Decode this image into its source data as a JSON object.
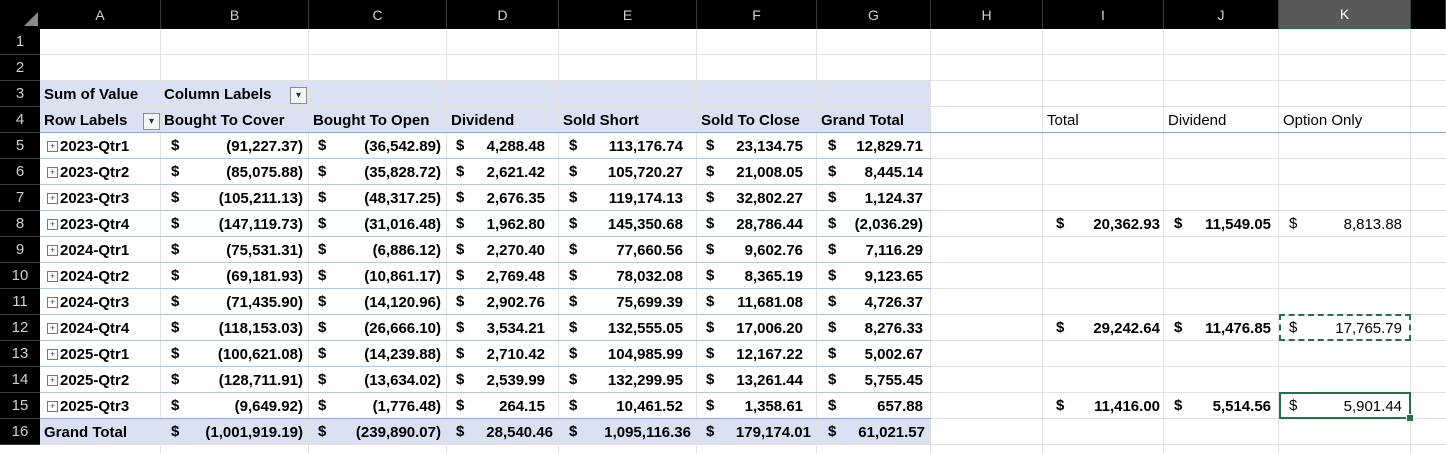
{
  "columns": [
    "A",
    "B",
    "C",
    "D",
    "E",
    "F",
    "G",
    "H",
    "I",
    "J",
    "K"
  ],
  "selected_column": "K",
  "rows": [
    "1",
    "2",
    "3",
    "4",
    "5",
    "6",
    "7",
    "8",
    "9",
    "10",
    "11",
    "12",
    "13",
    "14",
    "15",
    "16"
  ],
  "pivot": {
    "corner_label": "Sum of Value",
    "column_labels": "Column Labels",
    "row_labels": "Row Labels",
    "headers": [
      "Bought To Cover",
      "Bought To Open",
      "Dividend",
      "Sold Short",
      "Sold To Close",
      "Grand Total"
    ],
    "currency": "$",
    "data_rows": [
      {
        "label": "2023-Qtr1",
        "values": [
          "(91,227.37)",
          "(36,542.89)",
          "4,288.48",
          "113,176.74",
          "23,134.75",
          "12,829.71"
        ]
      },
      {
        "label": "2023-Qtr2",
        "values": [
          "(85,075.88)",
          "(35,828.72)",
          "2,621.42",
          "105,720.27",
          "21,008.05",
          "8,445.14"
        ]
      },
      {
        "label": "2023-Qtr3",
        "values": [
          "(105,211.13)",
          "(48,317.25)",
          "2,676.35",
          "119,174.13",
          "32,802.27",
          "1,124.37"
        ]
      },
      {
        "label": "2023-Qtr4",
        "values": [
          "(147,119.73)",
          "(31,016.48)",
          "1,962.80",
          "145,350.68",
          "28,786.44",
          "(2,036.29)"
        ]
      },
      {
        "label": "2024-Qtr1",
        "values": [
          "(75,531.31)",
          "(6,886.12)",
          "2,270.40",
          "77,660.56",
          "9,602.76",
          "7,116.29"
        ]
      },
      {
        "label": "2024-Qtr2",
        "values": [
          "(69,181.93)",
          "(10,861.17)",
          "2,769.48",
          "78,032.08",
          "8,365.19",
          "9,123.65"
        ]
      },
      {
        "label": "2024-Qtr3",
        "values": [
          "(71,435.90)",
          "(14,120.96)",
          "2,902.76",
          "75,699.39",
          "11,681.08",
          "4,726.37"
        ]
      },
      {
        "label": "2024-Qtr4",
        "values": [
          "(118,153.03)",
          "(26,666.10)",
          "3,534.21",
          "132,555.05",
          "17,006.20",
          "8,276.33"
        ]
      },
      {
        "label": "2025-Qtr1",
        "values": [
          "(100,621.08)",
          "(14,239.88)",
          "2,710.42",
          "104,985.99",
          "12,167.22",
          "5,002.67"
        ]
      },
      {
        "label": "2025-Qtr2",
        "values": [
          "(128,711.91)",
          "(13,634.02)",
          "2,539.99",
          "132,299.95",
          "13,261.44",
          "5,755.45"
        ]
      },
      {
        "label": "2025-Qtr3",
        "values": [
          "(9,649.92)",
          "(1,776.48)",
          "264.15",
          "10,461.52",
          "1,358.61",
          "657.88"
        ]
      }
    ],
    "grand_total": {
      "label": "Grand Total",
      "values": [
        "(1,001,919.19)",
        "(239,890.07)",
        "28,540.46",
        "1,095,116.36",
        "179,174.01",
        "61,021.57"
      ]
    }
  },
  "side": {
    "headers": [
      "Total",
      "Dividend",
      "Option Only"
    ],
    "rows": [
      {
        "row": "8",
        "total": "20,362.93",
        "dividend": "11,549.05",
        "option": "8,813.88"
      },
      {
        "row": "12",
        "total": "29,242.64",
        "dividend": "11,476.85",
        "option": "17,765.79"
      },
      {
        "row": "15",
        "total": "11,416.00",
        "dividend": "5,514.56",
        "option": "5,901.44"
      }
    ]
  },
  "colors": {
    "pivot_band": "#d9e1f2",
    "selection": "#217346"
  }
}
